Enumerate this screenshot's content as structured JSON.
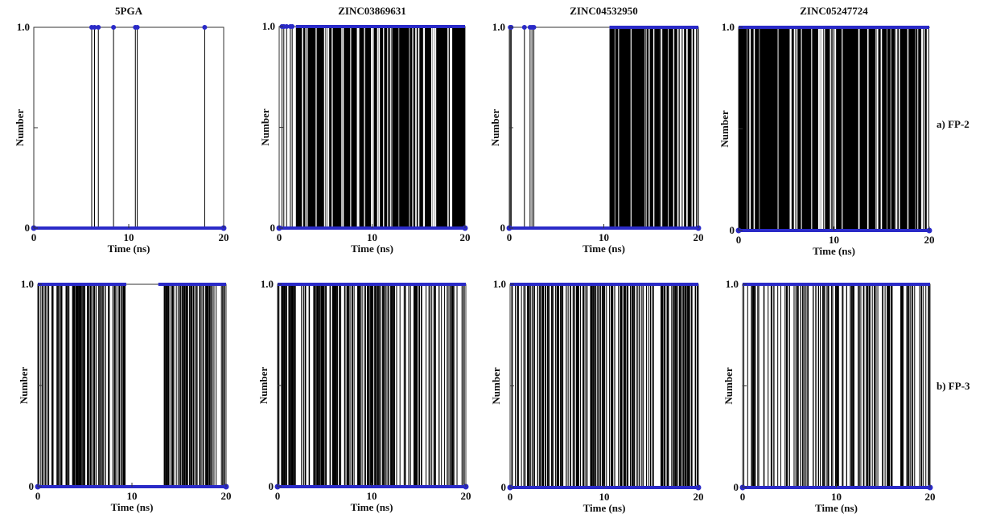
{
  "row_labels": [
    "a) FP-2",
    "b) FP-3"
  ],
  "colors": {
    "background": "#ffffff",
    "trace": "#000000",
    "markers": "#2a2ac8",
    "axes": "#333333"
  },
  "chart_data": [
    {
      "type": "line",
      "row": "a) FP-2",
      "title": "5PGA",
      "xlabel": "Time (ns)",
      "ylabel": "Number",
      "xlim": [
        0,
        20
      ],
      "ylim": [
        0,
        1.0
      ],
      "x_ticks": [
        0,
        10,
        20
      ],
      "y_ticks": [
        0,
        1.0
      ],
      "y_tick_labels": [
        "0",
        "1.0"
      ],
      "grid": false,
      "series": [
        {
          "style": "binary",
          "values": [
            0,
            1
          ],
          "density": "sparse",
          "level_1_ranges": [],
          "spikes_at_1": [
            6.1,
            6.4,
            6.8,
            8.4,
            10.7,
            10.9,
            18.0
          ]
        }
      ]
    },
    {
      "type": "line",
      "row": "a) FP-2",
      "title": "ZINC03869631",
      "xlabel": "Time (ns)",
      "ylabel": "Number",
      "xlim": [
        0,
        20
      ],
      "ylim": [
        0,
        1.0
      ],
      "x_ticks": [
        0,
        10,
        20
      ],
      "y_ticks": [
        0,
        1.0
      ],
      "y_tick_labels": [
        "0",
        "1.0"
      ],
      "grid": false,
      "series": [
        {
          "style": "binary",
          "values": [
            0,
            1
          ],
          "density": "dense",
          "level_1_ranges": [
            [
              1.8,
              20
            ]
          ],
          "spikes_at_1": [
            0.3,
            0.5,
            0.8,
            1.2,
            1.4
          ]
        }
      ]
    },
    {
      "type": "line",
      "row": "a) FP-2",
      "title": "ZINC04532950",
      "xlabel": "Time (ns)",
      "ylabel": "Number",
      "xlim": [
        0,
        20
      ],
      "ylim": [
        0,
        1.0
      ],
      "x_ticks": [
        0,
        10,
        20
      ],
      "y_ticks": [
        0,
        1.0
      ],
      "y_tick_labels": [
        "0",
        "1.0"
      ],
      "grid": false,
      "series": [
        {
          "style": "binary",
          "values": [
            0,
            1
          ],
          "density": "dense",
          "level_1_ranges": [
            [
              10.6,
              20
            ]
          ],
          "spikes_at_1": [
            0.1,
            0.2,
            1.6,
            2.2,
            2.4,
            2.6
          ]
        }
      ]
    },
    {
      "type": "line",
      "row": "a) FP-2",
      "title": "ZINC05247724",
      "xlabel": "Time (ns)",
      "ylabel": "Number",
      "xlim": [
        0,
        20
      ],
      "ylim": [
        0,
        1.0
      ],
      "x_ticks": [
        0,
        10,
        20
      ],
      "y_ticks": [
        0,
        1.0
      ],
      "y_tick_labels": [
        "0",
        "1.0"
      ],
      "grid": false,
      "series": [
        {
          "style": "binary",
          "values": [
            0,
            1
          ],
          "density": "dense",
          "level_1_ranges": [
            [
              0,
              20
            ]
          ],
          "spikes_at_1": []
        }
      ]
    },
    {
      "type": "line",
      "row": "b) FP-3",
      "title": "",
      "xlabel": "Time (ns)",
      "ylabel": "Number",
      "xlim": [
        0,
        20
      ],
      "ylim": [
        0,
        1.0
      ],
      "x_ticks": [
        0,
        10,
        20
      ],
      "y_ticks": [
        0,
        1.0
      ],
      "y_tick_labels": [
        "0",
        "1.0"
      ],
      "grid": false,
      "series": [
        {
          "style": "binary",
          "values": [
            0,
            1
          ],
          "density": "medium",
          "level_1_ranges": [
            [
              0,
              9.4
            ],
            [
              12.8,
              20
            ]
          ],
          "spikes_at_1": []
        }
      ]
    },
    {
      "type": "line",
      "row": "b) FP-3",
      "title": "",
      "xlabel": "Time (ns)",
      "ylabel": "Number",
      "xlim": [
        0,
        20
      ],
      "ylim": [
        0,
        1.0
      ],
      "x_ticks": [
        0,
        10,
        20
      ],
      "y_ticks": [
        0,
        1.0
      ],
      "y_tick_labels": [
        "0",
        "1.0"
      ],
      "grid": false,
      "series": [
        {
          "style": "binary",
          "values": [
            0,
            1
          ],
          "density": "medium",
          "level_1_ranges": [
            [
              0,
              20
            ]
          ],
          "spikes_at_1": []
        }
      ]
    },
    {
      "type": "line",
      "row": "b) FP-3",
      "title": "",
      "xlabel": "Time (ns)",
      "ylabel": "Number",
      "xlim": [
        0,
        20
      ],
      "ylim": [
        0,
        1.0
      ],
      "x_ticks": [
        0,
        10,
        20
      ],
      "y_ticks": [
        0,
        1.0
      ],
      "y_tick_labels": [
        "0",
        "1.0"
      ],
      "grid": false,
      "series": [
        {
          "style": "binary",
          "values": [
            0,
            1
          ],
          "density": "medium",
          "level_1_ranges": [
            [
              0,
              20
            ]
          ],
          "spikes_at_1": []
        }
      ]
    },
    {
      "type": "line",
      "row": "b) FP-3",
      "title": "",
      "xlabel": "Time (ns)",
      "ylabel": "Number",
      "xlim": [
        0,
        20
      ],
      "ylim": [
        0,
        1.0
      ],
      "x_ticks": [
        0,
        10,
        20
      ],
      "y_ticks": [
        0,
        1.0
      ],
      "y_tick_labels": [
        "0",
        "1.0"
      ],
      "grid": false,
      "series": [
        {
          "style": "binary",
          "values": [
            0,
            1
          ],
          "density": "light",
          "level_1_ranges": [
            [
              0,
              20
            ]
          ],
          "spikes_at_1": []
        }
      ]
    }
  ]
}
